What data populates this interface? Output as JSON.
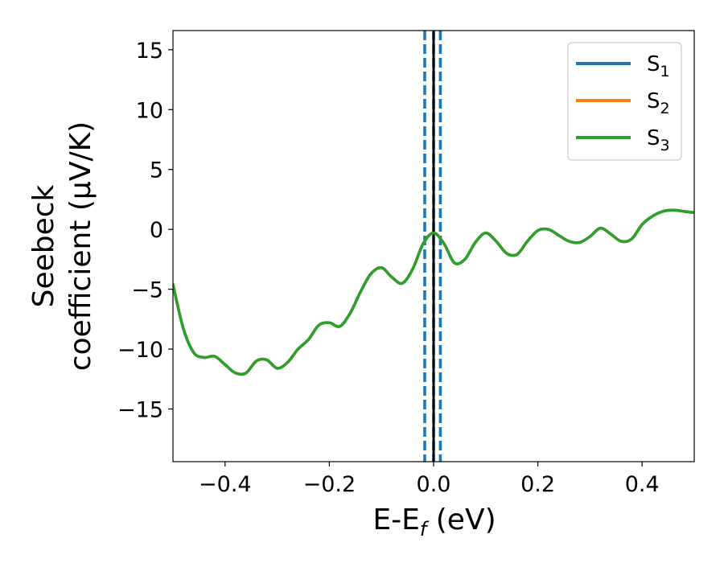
{
  "chart_data": {
    "type": "line",
    "xlabel": {
      "base": "E-E",
      "sub": "f",
      "tail": " (eV)"
    },
    "ylabel_lines": [
      "Seebeck",
      "coefficient  (μV/K)"
    ],
    "xlim": [
      -0.5,
      0.5
    ],
    "ylim": [
      -19.4,
      16.6
    ],
    "xticks": [
      -0.4,
      -0.2,
      0.0,
      0.2,
      0.4
    ],
    "xtick_labels": [
      "−0.4",
      "−0.2",
      "0.0",
      "0.2",
      "0.4"
    ],
    "yticks": [
      -15,
      -10,
      -5,
      0,
      5,
      10,
      15
    ],
    "ytick_labels": [
      "−15",
      "−10",
      "−5",
      "0",
      "5",
      "10",
      "15"
    ],
    "legend_position": "top-right",
    "series": [
      {
        "name": "S",
        "sub": "1",
        "color": "#1f77b4"
      },
      {
        "name": "S",
        "sub": "2",
        "color": "#ff7f0e"
      },
      {
        "name": "S",
        "sub": "3",
        "color": "#2ca02c"
      }
    ],
    "curve": {
      "x": [
        -0.5,
        -0.48,
        -0.46,
        -0.44,
        -0.42,
        -0.4,
        -0.38,
        -0.36,
        -0.34,
        -0.32,
        -0.3,
        -0.28,
        -0.26,
        -0.24,
        -0.22,
        -0.2,
        -0.18,
        -0.16,
        -0.14,
        -0.12,
        -0.1,
        -0.08,
        -0.06,
        -0.04,
        -0.02,
        0.0,
        0.02,
        0.04,
        0.06,
        0.08,
        0.1,
        0.12,
        0.14,
        0.16,
        0.18,
        0.2,
        0.22,
        0.24,
        0.26,
        0.28,
        0.3,
        0.32,
        0.34,
        0.36,
        0.38,
        0.4,
        0.42,
        0.44,
        0.46,
        0.48,
        0.5
      ],
      "y": [
        -4.6,
        -8.3,
        -10.3,
        -10.7,
        -10.6,
        -11.3,
        -12.0,
        -12.0,
        -11.0,
        -10.9,
        -11.6,
        -11.1,
        -10.0,
        -9.2,
        -8.0,
        -7.8,
        -8.1,
        -7.0,
        -5.2,
        -3.7,
        -3.2,
        -4.0,
        -4.5,
        -3.3,
        -1.2,
        -0.3,
        -1.2,
        -2.8,
        -2.5,
        -1.1,
        -0.3,
        -1.0,
        -2.0,
        -2.1,
        -1.0,
        -0.1,
        0.0,
        -0.5,
        -1.0,
        -1.1,
        -0.6,
        0.1,
        -0.4,
        -1.0,
        -0.8,
        0.4,
        1.1,
        1.5,
        1.6,
        1.5,
        1.4
      ]
    },
    "vlines": [
      {
        "x": -0.017,
        "style": "dashed",
        "color": "#1f77b4"
      },
      {
        "x": 0.0,
        "style": "dashed",
        "color": "#1f77b4"
      },
      {
        "x": 0.013,
        "style": "dashed",
        "color": "#1f77b4"
      },
      {
        "x": 0.0,
        "style": "solid",
        "color": "#000000"
      }
    ]
  }
}
